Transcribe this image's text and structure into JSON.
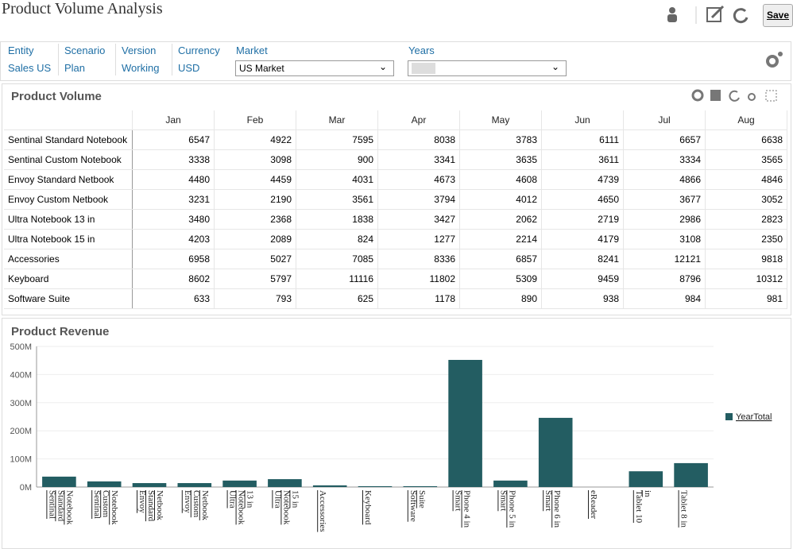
{
  "header": {
    "title": "Product Volume Analysis",
    "save": "Save"
  },
  "pov": [
    {
      "label": "Entity",
      "value": "Sales US"
    },
    {
      "label": "Scenario",
      "value": "Plan"
    },
    {
      "label": "Version",
      "value": "Working"
    },
    {
      "label": "Currency",
      "value": "USD"
    }
  ],
  "market": {
    "label": "Market",
    "value": "US Market"
  },
  "years": {
    "label": "Years"
  },
  "table": {
    "title": "Product Volume",
    "columns": [
      "Jan",
      "Feb",
      "Mar",
      "Apr",
      "May",
      "Jun",
      "Jul",
      "Aug"
    ],
    "rows": [
      {
        "label": "Sentinal Standard Notebook",
        "values": [
          6547,
          4922,
          7595,
          8038,
          3783,
          6111,
          6657,
          6638
        ]
      },
      {
        "label": "Sentinal Custom Notebook",
        "values": [
          3338,
          3098,
          900,
          3341,
          3635,
          3611,
          3334,
          3565
        ]
      },
      {
        "label": "Envoy Standard Netbook",
        "values": [
          4480,
          4459,
          4031,
          4673,
          4608,
          4739,
          4866,
          4846
        ]
      },
      {
        "label": "Envoy Custom Netbook",
        "values": [
          3231,
          2190,
          3561,
          3794,
          4012,
          4650,
          3677,
          3052
        ]
      },
      {
        "label": "Ultra Notebook 13 in",
        "values": [
          3480,
          2368,
          1838,
          3427,
          2062,
          2719,
          2986,
          2823
        ]
      },
      {
        "label": "Ultra Notebook 15 in",
        "values": [
          4203,
          2089,
          824,
          1277,
          2214,
          4179,
          3108,
          2350
        ]
      },
      {
        "label": "Accessories",
        "values": [
          6958,
          5027,
          7085,
          8336,
          6857,
          8241,
          12121,
          9818
        ]
      },
      {
        "label": "Keyboard",
        "values": [
          8602,
          5797,
          11116,
          11802,
          5309,
          9459,
          8796,
          10312
        ]
      },
      {
        "label": "Software Suite",
        "values": [
          633,
          793,
          625,
          1178,
          890,
          938,
          984,
          981
        ]
      }
    ]
  },
  "chart_data": {
    "type": "bar",
    "title": "Product Revenue",
    "categories": [
      "Sentinal Standard Notebook",
      "Sentinal Custom Notebook",
      "Envoy Standard Netbook",
      "Envoy Custom Netbook",
      "Ultra Notebook 13 in",
      "Ultra Notebook 15 in",
      "Accessories",
      "Keyboard",
      "Software Suite",
      "Smart Phone 4 in",
      "Smart Phone 5 in",
      "Smart Phone 6 in",
      "eReader",
      "Tablet 10 in",
      "Tablet 8 in"
    ],
    "series": [
      {
        "name": "YearTotal",
        "color": "#235d62",
        "values": [
          37000000,
          20000000,
          14000000,
          14000000,
          23000000,
          28000000,
          6000000,
          3000000,
          3000000,
          452000000,
          23000000,
          246000000,
          0,
          56000000,
          85000000
        ]
      }
    ],
    "ylim": [
      0,
      500000000
    ],
    "yticks": [
      {
        "value": 0,
        "label": "0M"
      },
      {
        "value": 100000000,
        "label": "100M"
      },
      {
        "value": 200000000,
        "label": "200M"
      },
      {
        "value": 300000000,
        "label": "300M"
      },
      {
        "value": 400000000,
        "label": "400M"
      },
      {
        "value": 500000000,
        "label": "500M"
      }
    ],
    "grid": true,
    "legend": "right"
  }
}
